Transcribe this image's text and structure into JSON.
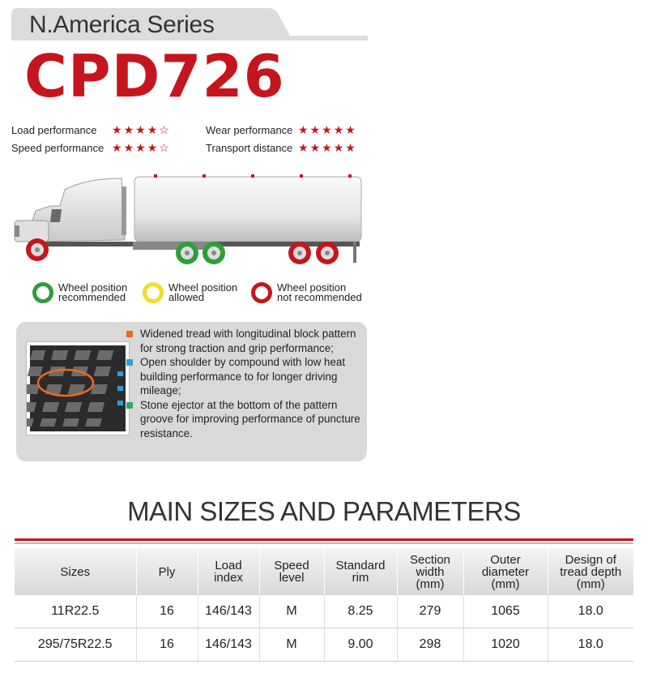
{
  "header": {
    "series": "N.America Series",
    "model": "CPD726"
  },
  "ratings": [
    {
      "label": "Load performance",
      "stars": 4
    },
    {
      "label": "Speed performance",
      "stars": 4
    },
    {
      "label": "Wear performance",
      "stars": 5
    },
    {
      "label": "Transport distance",
      "stars": 5
    }
  ],
  "colors": {
    "brand_red": "#c4161c",
    "recommended": "#2e9d3a",
    "allowed": "#f2dc2b",
    "not_recommended": "#c4161c",
    "bullet_orange": "#ec6a1c",
    "bullet_blue": "#2a9fd8",
    "bullet_green": "#2ea86a"
  },
  "legend": [
    {
      "line1": "Wheel position",
      "line2": "recommended"
    },
    {
      "line1": "Wheel position",
      "line2": "allowed"
    },
    {
      "line1": "Wheel position",
      "line2": "not recommended"
    }
  ],
  "features": [
    {
      "text": "Widened tread with longitudinal block pattern for strong traction and grip performance;"
    },
    {
      "text": "Open shoulder by compound with low heat building performance to for longer driving mileage;"
    },
    {
      "text": "Stone ejector at the bottom of the pattern groove for improving performance of puncture resistance."
    }
  ],
  "params": {
    "heading": "MAIN SIZES AND PARAMETERS",
    "columns": [
      {
        "line1": "Sizes",
        "line2": "",
        "line3": ""
      },
      {
        "line1": "Ply",
        "line2": "",
        "line3": ""
      },
      {
        "line1": "Load",
        "line2": "index",
        "line3": ""
      },
      {
        "line1": "Speed",
        "line2": "level",
        "line3": ""
      },
      {
        "line1": "Standard",
        "line2": "rim",
        "line3": ""
      },
      {
        "line1": "Section",
        "line2": "width",
        "line3": "(mm)"
      },
      {
        "line1": "Outer",
        "line2": "diameter",
        "line3": "(mm)"
      },
      {
        "line1": "Design of",
        "line2": "tread depth",
        "line3": "(mm)"
      }
    ],
    "rows": [
      [
        "11R22.5",
        "16",
        "146/143",
        "M",
        "8.25",
        "279",
        "1065",
        "18.0"
      ],
      [
        "295/75R22.5",
        "16",
        "146/143",
        "M",
        "9.00",
        "298",
        "1020",
        "18.0"
      ]
    ]
  }
}
